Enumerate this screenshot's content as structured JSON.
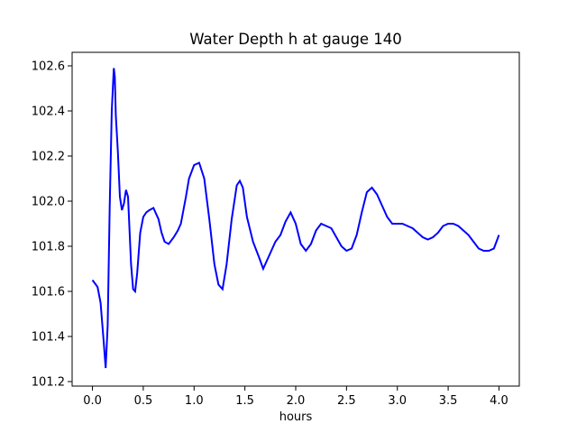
{
  "chart_data": {
    "type": "line",
    "title": "Water Depth h at gauge 140",
    "xlabel": "hours",
    "ylabel": "",
    "xlim": [
      -0.2,
      4.2
    ],
    "ylim": [
      101.18,
      102.66
    ],
    "xticks": [
      0.0,
      0.5,
      1.0,
      1.5,
      2.0,
      2.5,
      3.0,
      3.5,
      4.0
    ],
    "xtick_labels": [
      "0.0",
      "0.5",
      "1.0",
      "1.5",
      "2.0",
      "2.5",
      "3.0",
      "3.5",
      "4.0"
    ],
    "yticks": [
      101.2,
      101.4,
      101.6,
      101.8,
      102.0,
      102.2,
      102.4,
      102.6
    ],
    "ytick_labels": [
      "101.2",
      "101.4",
      "101.6",
      "101.8",
      "102.0",
      "102.2",
      "102.4",
      "102.6"
    ],
    "grid": false,
    "series": [
      {
        "color": "#0000ff",
        "x": [
          0.0,
          0.05,
          0.08,
          0.11,
          0.13,
          0.15,
          0.17,
          0.19,
          0.21,
          0.22,
          0.23,
          0.25,
          0.27,
          0.29,
          0.31,
          0.33,
          0.35,
          0.38,
          0.4,
          0.42,
          0.44,
          0.47,
          0.5,
          0.53,
          0.56,
          0.6,
          0.65,
          0.68,
          0.71,
          0.75,
          0.8,
          0.84,
          0.87,
          0.92,
          0.95,
          1.0,
          1.05,
          1.1,
          1.15,
          1.2,
          1.24,
          1.28,
          1.32,
          1.37,
          1.42,
          1.45,
          1.48,
          1.52,
          1.58,
          1.64,
          1.68,
          1.73,
          1.8,
          1.85,
          1.9,
          1.95,
          2.0,
          2.05,
          2.1,
          2.15,
          2.2,
          2.25,
          2.3,
          2.35,
          2.4,
          2.45,
          2.5,
          2.55,
          2.6,
          2.65,
          2.7,
          2.75,
          2.8,
          2.85,
          2.9,
          2.95,
          3.0,
          3.05,
          3.1,
          3.15,
          3.2,
          3.25,
          3.3,
          3.35,
          3.4,
          3.45,
          3.5,
          3.55,
          3.6,
          3.65,
          3.7,
          3.75,
          3.8,
          3.85,
          3.9,
          3.95,
          4.0
        ],
        "y": [
          101.65,
          101.62,
          101.55,
          101.38,
          101.26,
          101.45,
          101.98,
          102.4,
          102.59,
          102.55,
          102.38,
          102.22,
          102.02,
          101.96,
          101.99,
          102.05,
          102.02,
          101.72,
          101.61,
          101.6,
          101.68,
          101.86,
          101.93,
          101.95,
          101.96,
          101.97,
          101.92,
          101.86,
          101.82,
          101.81,
          101.84,
          101.87,
          101.9,
          102.02,
          102.1,
          102.16,
          102.17,
          102.1,
          101.92,
          101.72,
          101.63,
          101.61,
          101.72,
          101.92,
          102.07,
          102.09,
          102.06,
          101.93,
          101.82,
          101.75,
          101.7,
          101.75,
          101.82,
          101.85,
          101.91,
          101.95,
          101.9,
          101.81,
          101.78,
          101.81,
          101.87,
          101.9,
          101.89,
          101.88,
          101.84,
          101.8,
          101.78,
          101.79,
          101.85,
          101.95,
          102.04,
          102.06,
          102.03,
          101.98,
          101.93,
          101.9,
          101.9,
          101.9,
          101.89,
          101.88,
          101.86,
          101.84,
          101.83,
          101.84,
          101.86,
          101.89,
          101.9,
          101.9,
          101.89,
          101.87,
          101.85,
          101.82,
          101.79,
          101.78,
          101.78,
          101.79,
          101.85
        ]
      }
    ]
  }
}
